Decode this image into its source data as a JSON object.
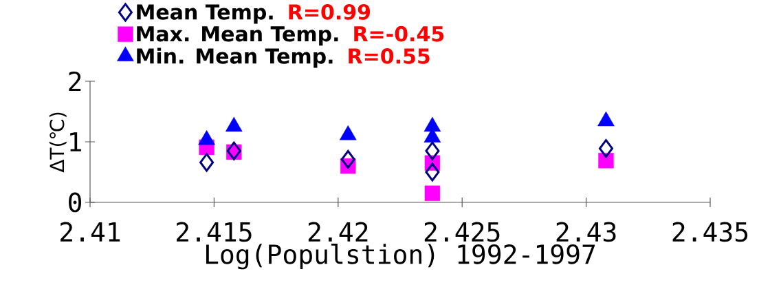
{
  "chart_data": {
    "type": "scatter",
    "xlabel": "Log(Populstion) 1992-1997",
    "ylabel": "ΔT(℃)",
    "xlim": [
      2.41,
      2.435
    ],
    "xticks": [
      2.41,
      2.415,
      2.42,
      2.425,
      2.43,
      2.435
    ],
    "ylim": [
      0,
      2
    ],
    "yticks": [
      0,
      1,
      2
    ],
    "grid": false,
    "legend": "top left",
    "annotations": [
      "R=0.99",
      "R=-0.45",
      "R=0.55"
    ],
    "series": [
      {
        "name": "Mean Temp.",
        "color": "#000080",
        "marker": "diamond",
        "x": [
          2.4147,
          2.4158,
          2.4204,
          2.4238,
          2.4238,
          2.4308
        ],
        "values": [
          0.66,
          0.85,
          0.71,
          0.85,
          0.5,
          0.89
        ]
      },
      {
        "name": "Max. Mean Temp.",
        "color": "#ff00ff",
        "marker": "square",
        "x": [
          2.4147,
          2.4158,
          2.4204,
          2.4238,
          2.4238,
          2.4308
        ],
        "values": [
          0.91,
          0.83,
          0.6,
          0.65,
          0.15,
          0.69
        ]
      },
      {
        "name": "Min. Mean Temp.",
        "color": "#0000ff",
        "marker": "triangle",
        "x": [
          2.4147,
          2.4158,
          2.4204,
          2.4238,
          2.4238,
          2.4308
        ],
        "values": [
          1.03,
          1.25,
          1.11,
          1.25,
          1.07,
          1.34
        ]
      }
    ]
  }
}
